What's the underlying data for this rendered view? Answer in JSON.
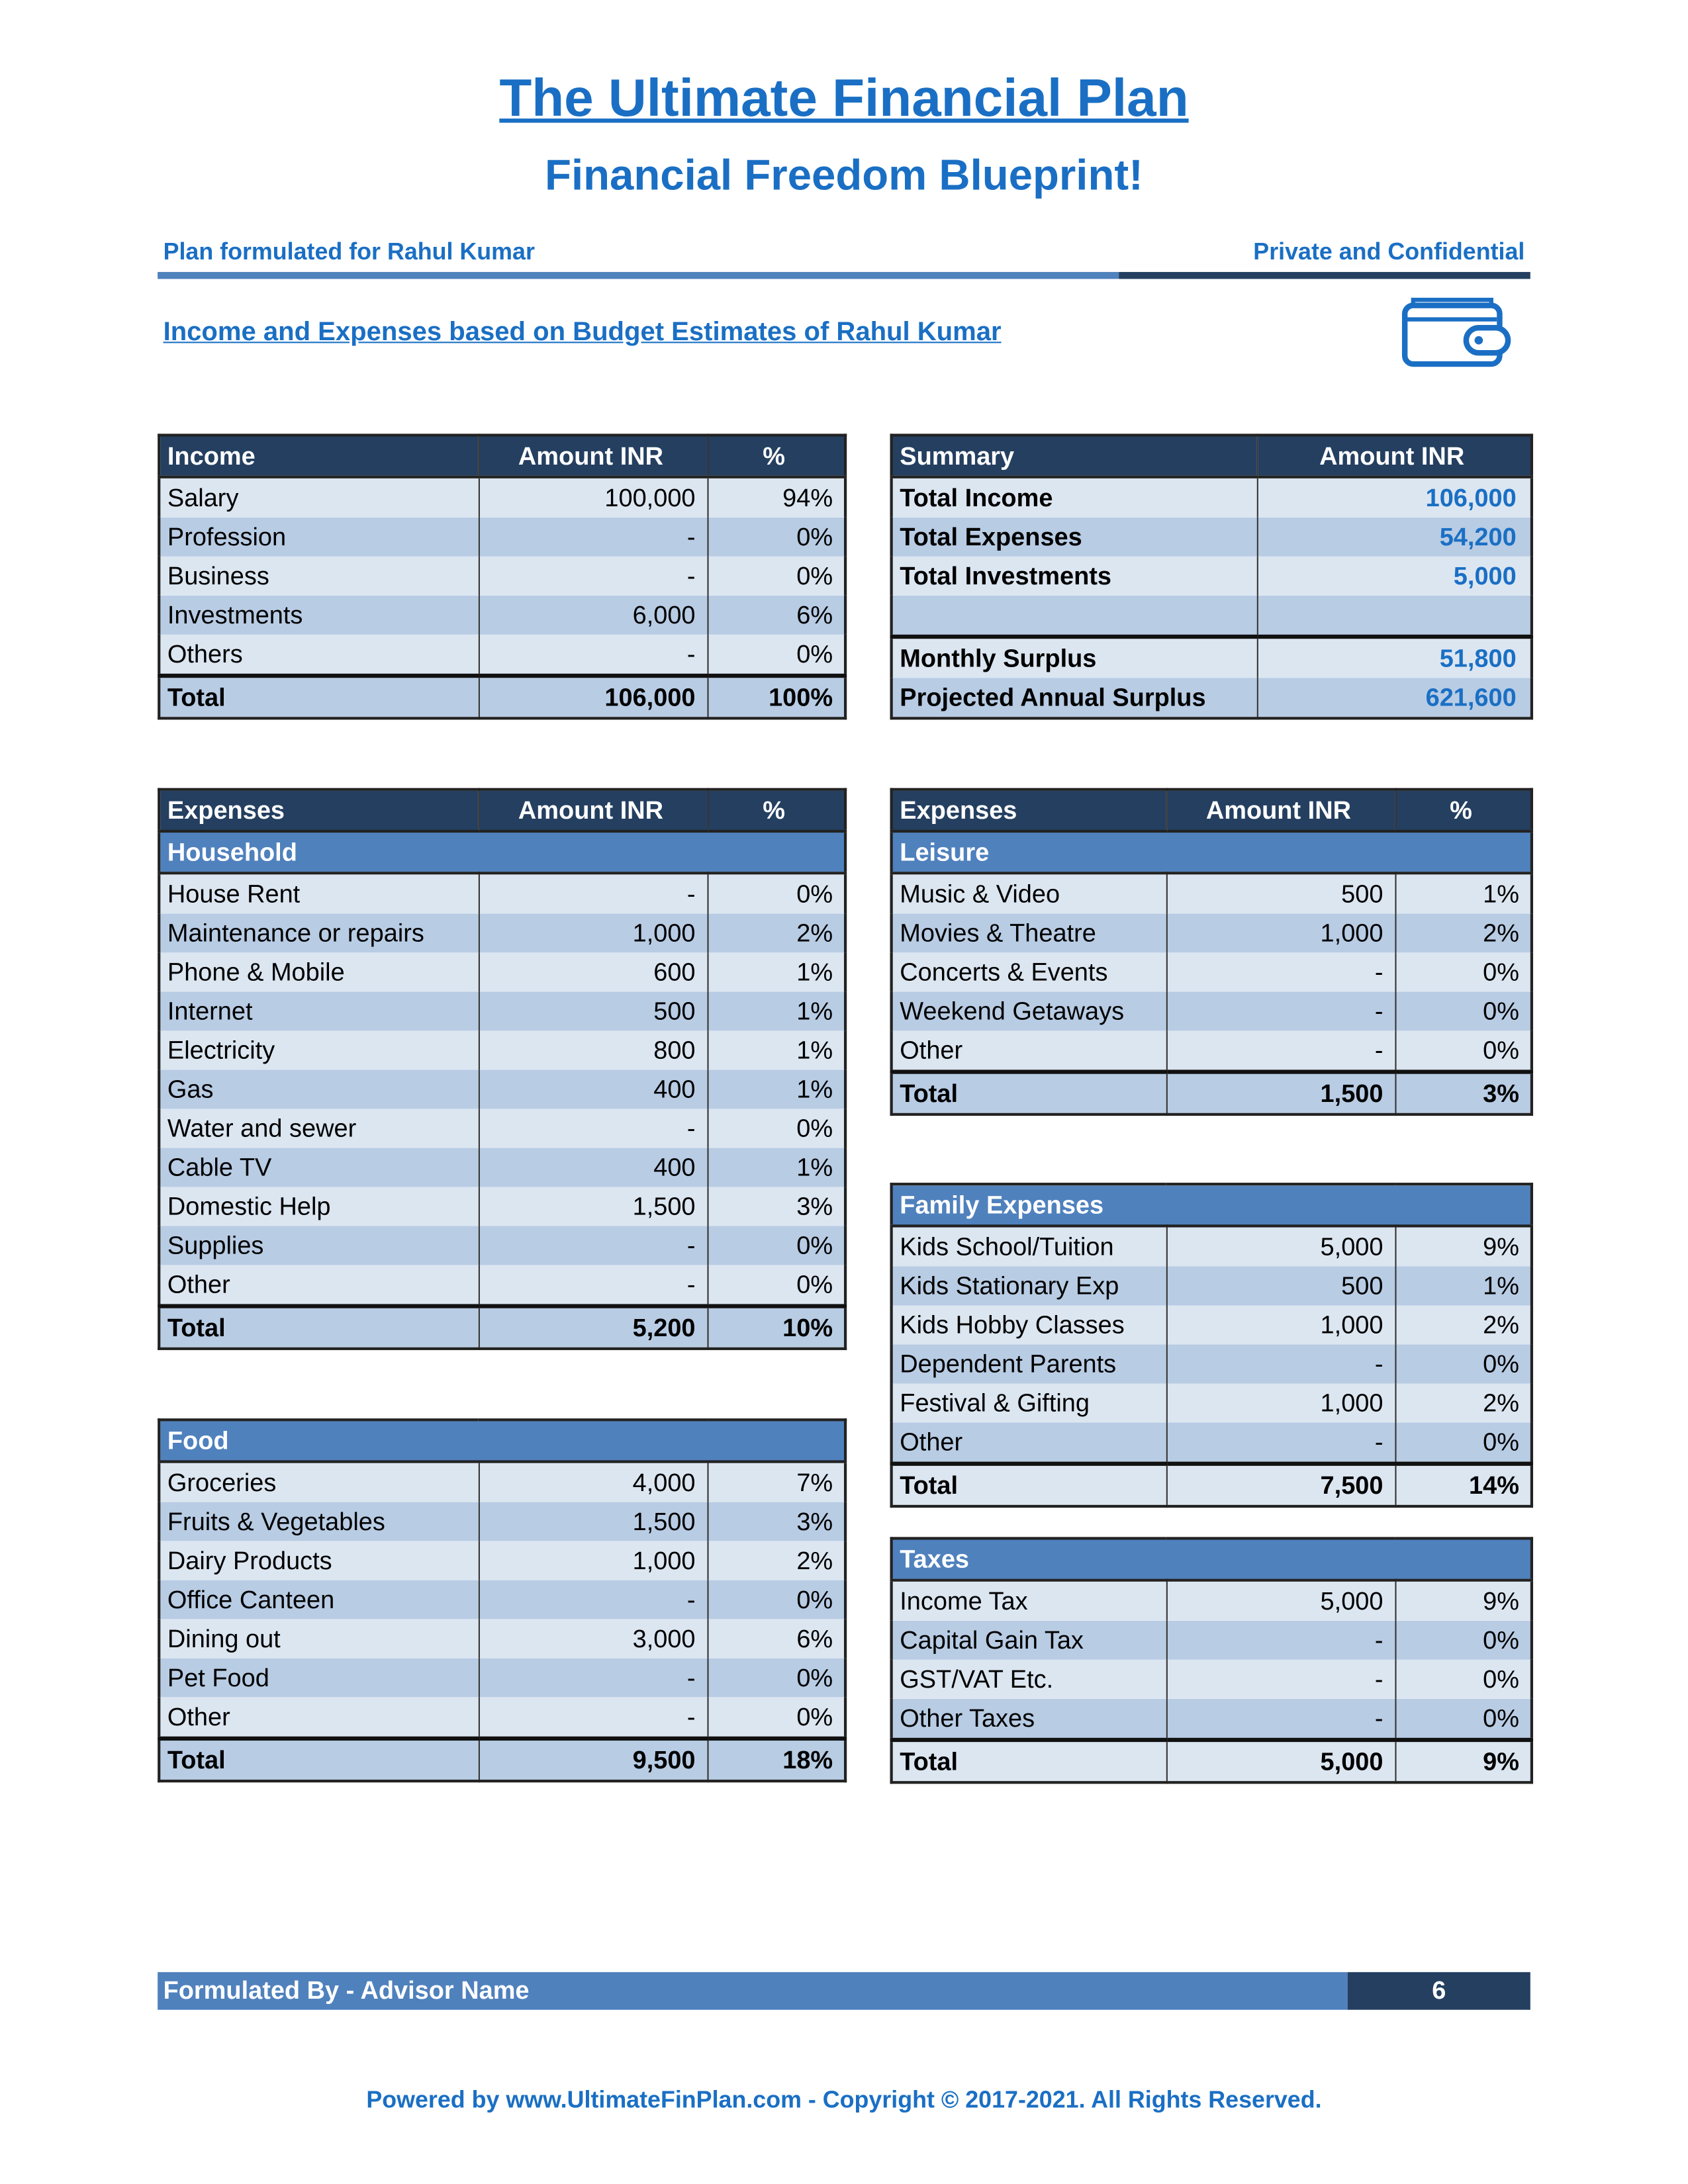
{
  "header": {
    "title": "The Ultimate Financial Plan",
    "subtitle": "Financial Freedom Blueprint!",
    "plan_for": "Plan formulated for Rahul Kumar",
    "confidentiality": "Private and Confidential"
  },
  "section_title": "Income and Expenses based on Budget Estimates of Rahul Kumar",
  "tables": {
    "income": {
      "headers": [
        "Income",
        "Amount INR",
        "%"
      ],
      "rows": [
        [
          "Salary",
          "100,000",
          "94%"
        ],
        [
          "Profession",
          "-",
          "0%"
        ],
        [
          "Business",
          "-",
          "0%"
        ],
        [
          "Investments",
          "6,000",
          "6%"
        ],
        [
          "Others",
          "-",
          "0%"
        ]
      ],
      "total": [
        "Total",
        "106,000",
        "100%"
      ]
    },
    "summary": {
      "headers": [
        "Summary",
        "Amount INR"
      ],
      "rows": [
        [
          "Total Income",
          "106,000"
        ],
        [
          "Total Expenses",
          "54,200"
        ],
        [
          "Total Investments",
          "5,000"
        ],
        [
          "Monthly Surplus",
          "51,800"
        ],
        [
          "Projected Annual Surplus",
          "621,600"
        ]
      ]
    },
    "household": {
      "headers": [
        "Expenses",
        "Amount INR",
        "%"
      ],
      "group": "Household",
      "rows": [
        [
          "House Rent",
          "-",
          "0%"
        ],
        [
          "Maintenance or repairs",
          "1,000",
          "2%"
        ],
        [
          "Phone & Mobile",
          "600",
          "1%"
        ],
        [
          "Internet",
          "500",
          "1%"
        ],
        [
          "Electricity",
          "800",
          "1%"
        ],
        [
          "Gas",
          "400",
          "1%"
        ],
        [
          "Water and sewer",
          "-",
          "0%"
        ],
        [
          "Cable TV",
          "400",
          "1%"
        ],
        [
          "Domestic Help",
          "1,500",
          "3%"
        ],
        [
          "Supplies",
          "-",
          "0%"
        ],
        [
          "Other",
          "-",
          "0%"
        ]
      ],
      "total": [
        "Total",
        "5,200",
        "10%"
      ]
    },
    "food": {
      "group": "Food",
      "rows": [
        [
          "Groceries",
          "4,000",
          "7%"
        ],
        [
          "Fruits & Vegetables",
          "1,500",
          "3%"
        ],
        [
          "Dairy Products",
          "1,000",
          "2%"
        ],
        [
          "Office Canteen",
          "-",
          "0%"
        ],
        [
          "Dining out",
          "3,000",
          "6%"
        ],
        [
          "Pet Food",
          "-",
          "0%"
        ],
        [
          "Other",
          "-",
          "0%"
        ]
      ],
      "total": [
        "Total",
        "9,500",
        "18%"
      ]
    },
    "leisure": {
      "headers": [
        "Expenses",
        "Amount INR",
        "%"
      ],
      "group": "Leisure",
      "rows": [
        [
          "Music & Video",
          "500",
          "1%"
        ],
        [
          "Movies & Theatre",
          "1,000",
          "2%"
        ],
        [
          "Concerts & Events",
          "-",
          "0%"
        ],
        [
          "Weekend Getaways",
          "-",
          "0%"
        ],
        [
          "Other",
          "-",
          "0%"
        ]
      ],
      "total": [
        "Total",
        "1,500",
        "3%"
      ]
    },
    "family": {
      "group": "Family Expenses",
      "rows": [
        [
          "Kids School/Tuition",
          "5,000",
          "9%"
        ],
        [
          "Kids Stationary Exp",
          "500",
          "1%"
        ],
        [
          "Kids Hobby Classes",
          "1,000",
          "2%"
        ],
        [
          "Dependent Parents",
          "-",
          "0%"
        ],
        [
          "Festival & Gifting",
          "1,000",
          "2%"
        ],
        [
          "Other",
          "-",
          "0%"
        ]
      ],
      "total": [
        "Total",
        "7,500",
        "14%"
      ]
    },
    "taxes": {
      "group": "Taxes",
      "rows": [
        [
          "Income Tax",
          "5,000",
          "9%"
        ],
        [
          "Capital Gain Tax",
          "-",
          "0%"
        ],
        [
          "GST/VAT Etc.",
          "-",
          "0%"
        ],
        [
          "Other Taxes",
          "-",
          "0%"
        ]
      ],
      "total": [
        "Total",
        "5,000",
        "9%"
      ]
    }
  },
  "footer": {
    "advisor": "Formulated By - Advisor Name",
    "page": "6",
    "copyright": "Powered by www.UltimateFinPlan.com - Copyright © 2017-2021. All Rights Reserved."
  }
}
